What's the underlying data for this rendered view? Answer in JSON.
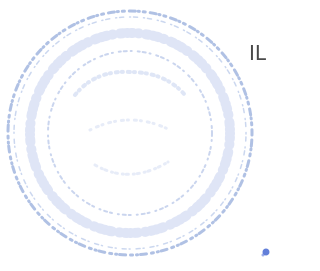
{
  "document": {
    "fragment": "IL"
  }
}
